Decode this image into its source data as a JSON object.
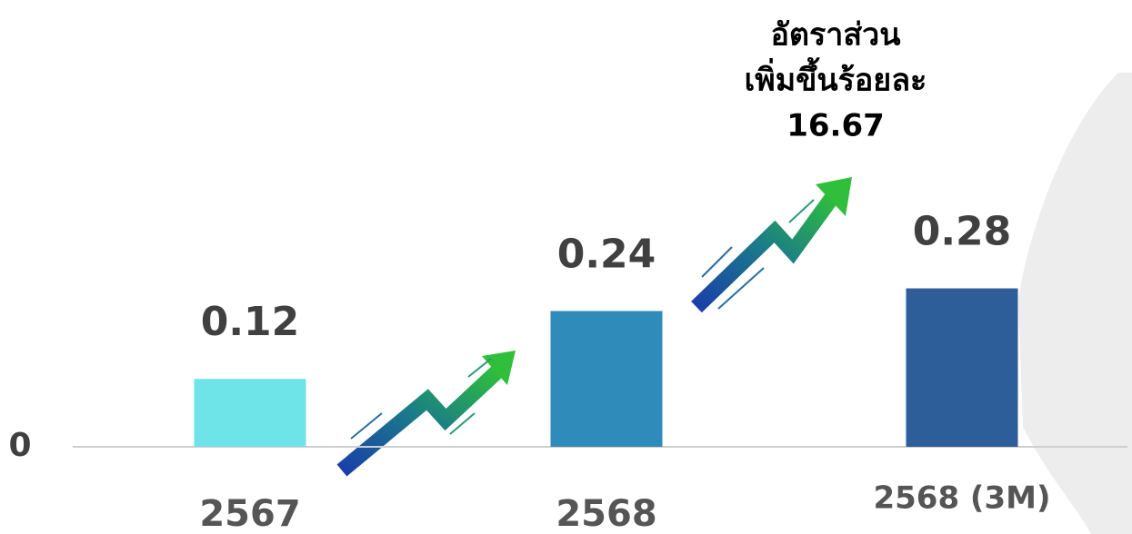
{
  "chart_data": {
    "type": "bar",
    "categories": [
      "2567",
      "2568",
      "2568 (3M)"
    ],
    "values": [
      0.12,
      0.24,
      0.28
    ],
    "colors": [
      "#6ee3e8",
      "#2e8bba",
      "#2e5e99"
    ],
    "ylim": [
      0,
      0.78
    ],
    "yticks": [
      0
    ],
    "annotation": [
      "อัตราส่วน",
      "เพิ่มขึ้นร้อยละ",
      "16.67"
    ]
  }
}
